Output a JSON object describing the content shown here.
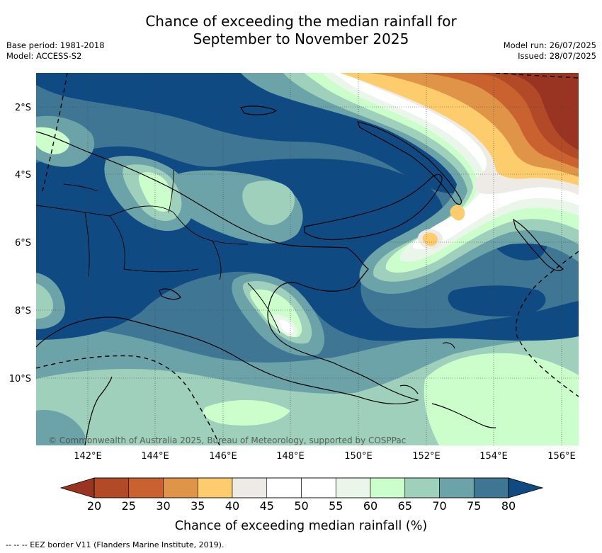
{
  "title_line1": "Chance of exceeding the median rainfall for",
  "title_line2": "September to November 2025",
  "info_left": {
    "base_period": "Base period: 1981-2018",
    "model": "Model: ACCESS-S2"
  },
  "info_right": {
    "model_run": "Model run: 26/07/2025",
    "issued": "Issued: 28/07/2025"
  },
  "map": {
    "lon_ticks": [
      "142°E",
      "144°E",
      "146°E",
      "148°E",
      "150°E",
      "152°E",
      "154°E",
      "156°E"
    ],
    "lat_ticks": [
      "2°S",
      "4°S",
      "6°S",
      "8°S",
      "10°S"
    ],
    "copyright": "© Commonwealth of Australia 2025, Bureau of Meteorology, supported by COSPPac",
    "projection_bounds": {
      "lon_min": 140.6,
      "lon_max": 156.5,
      "lat_north": 1.0,
      "lat_south": 12.0
    }
  },
  "colorbar": {
    "ticks": [
      "20",
      "25",
      "30",
      "35",
      "40",
      "45",
      "50",
      "55",
      "60",
      "65",
      "70",
      "75",
      "80"
    ],
    "colors": [
      "#983421",
      "#b24a27",
      "#c9622e",
      "#e09448",
      "#fdcc6c",
      "#eeebe6",
      "#ffffff",
      "#ffffff",
      "#e9f6e9",
      "#cbfecb",
      "#9ed0bb",
      "#6ba3a8",
      "#3f7694",
      "#104a83"
    ],
    "label": "Chance of exceeding median rainfall (%)"
  },
  "footer": "-- -- -- EEZ border V11 (Flanders Marine Institute, 2019)."
}
